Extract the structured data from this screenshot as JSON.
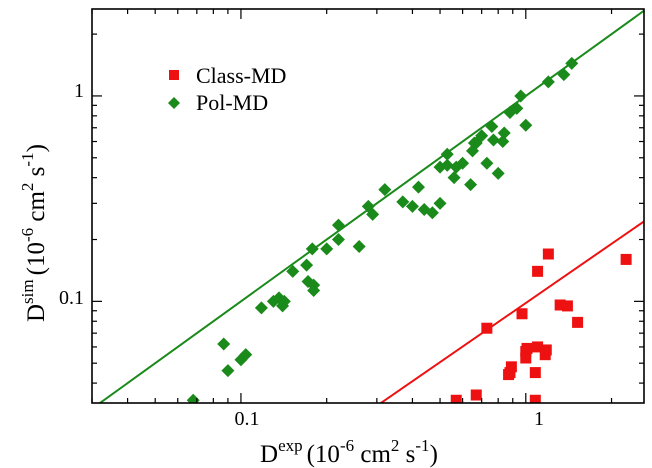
{
  "chart_data": {
    "type": "scatter",
    "xscale": "log",
    "yscale": "log",
    "xlim": [
      0.03,
      2.6
    ],
    "ylim": [
      0.032,
      2.65
    ],
    "xticks": [
      {
        "value": 0.1,
        "label": "0.1"
      },
      {
        "value": 1,
        "label": "1"
      }
    ],
    "yticks": [
      {
        "value": 0.1,
        "label": "0.1"
      },
      {
        "value": 1,
        "label": "1"
      }
    ],
    "xlabel": {
      "main": "D",
      "sup": "exp",
      "units": "(10",
      "exp1": "-6",
      "mid": " cm",
      "exp2": "2",
      "unit_s": " s",
      "exp3": "-1",
      "close": ")"
    },
    "ylabel": {
      "main": "D",
      "sup": "sim",
      "units": "(10",
      "exp1": "-6",
      "mid": " cm",
      "exp2": "2",
      "unit_s": " s",
      "exp3": "-1",
      "close": ")"
    },
    "legend_position": "top-left",
    "grid": false,
    "series": [
      {
        "name": "Class-MD",
        "marker": "square",
        "color": "#ee1111",
        "fit_line": {
          "x": [
            0.31,
            2.6
          ],
          "y": [
            0.032,
            0.245
          ]
        },
        "points": [
          [
            0.57,
            0.033
          ],
          [
            0.67,
            0.035
          ],
          [
            0.73,
            0.074
          ],
          [
            0.87,
            0.044
          ],
          [
            0.88,
            0.045
          ],
          [
            0.89,
            0.048
          ],
          [
            0.97,
            0.087
          ],
          [
            1.0,
            0.053
          ],
          [
            1.0,
            0.057
          ],
          [
            1.01,
            0.059
          ],
          [
            1.08,
            0.033
          ],
          [
            1.08,
            0.045
          ],
          [
            1.1,
            0.06
          ],
          [
            1.1,
            0.14
          ],
          [
            1.17,
            0.055
          ],
          [
            1.18,
            0.058
          ],
          [
            1.2,
            0.17
          ],
          [
            1.32,
            0.096
          ],
          [
            1.4,
            0.095
          ],
          [
            1.52,
            0.079
          ],
          [
            2.25,
            0.16
          ]
        ]
      },
      {
        "name": "Pol-MD",
        "marker": "diamond",
        "color": "#1a8a1a",
        "fit_line": {
          "x": [
            0.03,
            2.6
          ],
          "y": [
            0.03,
            2.6
          ]
        },
        "points": [
          [
            0.068,
            0.033
          ],
          [
            0.087,
            0.062
          ],
          [
            0.09,
            0.046
          ],
          [
            0.1,
            0.052
          ],
          [
            0.104,
            0.055
          ],
          [
            0.118,
            0.093
          ],
          [
            0.13,
            0.1
          ],
          [
            0.136,
            0.104
          ],
          [
            0.14,
            0.095
          ],
          [
            0.142,
            0.1
          ],
          [
            0.152,
            0.14
          ],
          [
            0.17,
            0.15
          ],
          [
            0.172,
            0.125
          ],
          [
            0.178,
            0.18
          ],
          [
            0.18,
            0.12
          ],
          [
            0.18,
            0.113
          ],
          [
            0.2,
            0.18
          ],
          [
            0.22,
            0.235
          ],
          [
            0.22,
            0.2
          ],
          [
            0.26,
            0.185
          ],
          [
            0.28,
            0.29
          ],
          [
            0.29,
            0.265
          ],
          [
            0.32,
            0.35
          ],
          [
            0.37,
            0.305
          ],
          [
            0.4,
            0.29
          ],
          [
            0.42,
            0.36
          ],
          [
            0.44,
            0.28
          ],
          [
            0.47,
            0.27
          ],
          [
            0.5,
            0.3
          ],
          [
            0.5,
            0.45
          ],
          [
            0.53,
            0.52
          ],
          [
            0.53,
            0.46
          ],
          [
            0.56,
            0.4
          ],
          [
            0.57,
            0.45
          ],
          [
            0.6,
            0.47
          ],
          [
            0.64,
            0.37
          ],
          [
            0.65,
            0.54
          ],
          [
            0.66,
            0.59
          ],
          [
            0.67,
            0.59
          ],
          [
            0.7,
            0.64
          ],
          [
            0.73,
            0.47
          ],
          [
            0.76,
            0.71
          ],
          [
            0.77,
            0.61
          ],
          [
            0.8,
            0.42
          ],
          [
            0.83,
            0.6
          ],
          [
            0.84,
            0.66
          ],
          [
            0.88,
            0.83
          ],
          [
            0.93,
            0.87
          ],
          [
            0.96,
            1.0
          ],
          [
            1.0,
            0.72
          ],
          [
            1.2,
            1.17
          ],
          [
            1.36,
            1.27
          ],
          [
            1.45,
            1.44
          ]
        ]
      }
    ]
  }
}
